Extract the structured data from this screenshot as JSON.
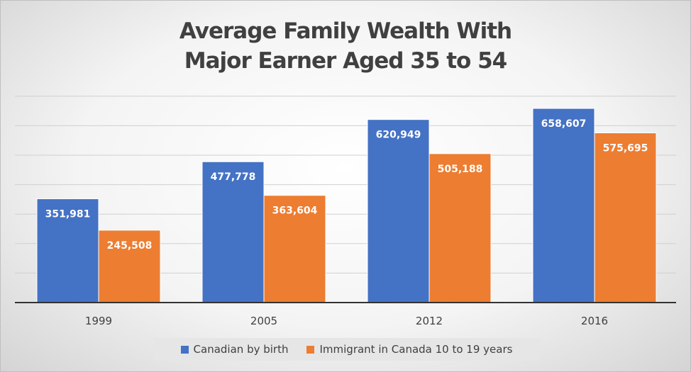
{
  "chart_data": {
    "type": "bar",
    "title": [
      "Average Family Wealth With",
      "Major Earner Aged 35 to 54"
    ],
    "categories": [
      "1999",
      "2005",
      "2012",
      "2016"
    ],
    "series": [
      {
        "name": "Canadian by birth",
        "color": "#4472C4",
        "values": [
          351981,
          477778,
          620949,
          658607
        ],
        "labels": [
          "351,981",
          "477,778",
          "620,949",
          "658,607"
        ]
      },
      {
        "name": "Immigrant in Canada 10 to 19 years",
        "color": "#ED7D31",
        "values": [
          245508,
          363604,
          505188,
          575695
        ],
        "labels": [
          "245,508",
          "363,604",
          "505,188",
          "575,695"
        ]
      }
    ],
    "ylim": [
      0,
      700000
    ],
    "gridlines": true,
    "legend_position": "bottom"
  }
}
